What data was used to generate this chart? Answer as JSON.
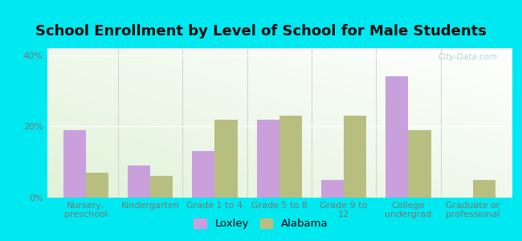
{
  "title": "School Enrollment by Level of School for Male Students",
  "categories": [
    "Nursery,\npreschool",
    "Kindergarten",
    "Grade 1 to 4",
    "Grade 5 to 8",
    "Grade 9 to\n12",
    "College\nundergrad",
    "Graduate or\nprofessional"
  ],
  "loxley": [
    19,
    9,
    13,
    22,
    5,
    34,
    0
  ],
  "alabama": [
    7,
    6,
    22,
    23,
    23,
    19,
    5
  ],
  "loxley_color": "#c9a0dc",
  "alabama_color": "#b8be80",
  "background_outer": "#00e8f0",
  "bar_width": 0.35,
  "ylim": [
    0,
    42
  ],
  "yticks": [
    0,
    20,
    40
  ],
  "ytick_labels": [
    "0%",
    "20%",
    "40%"
  ],
  "title_fontsize": 13,
  "tick_fontsize": 8,
  "legend_fontsize": 9.5,
  "watermark": "City-Data.com"
}
